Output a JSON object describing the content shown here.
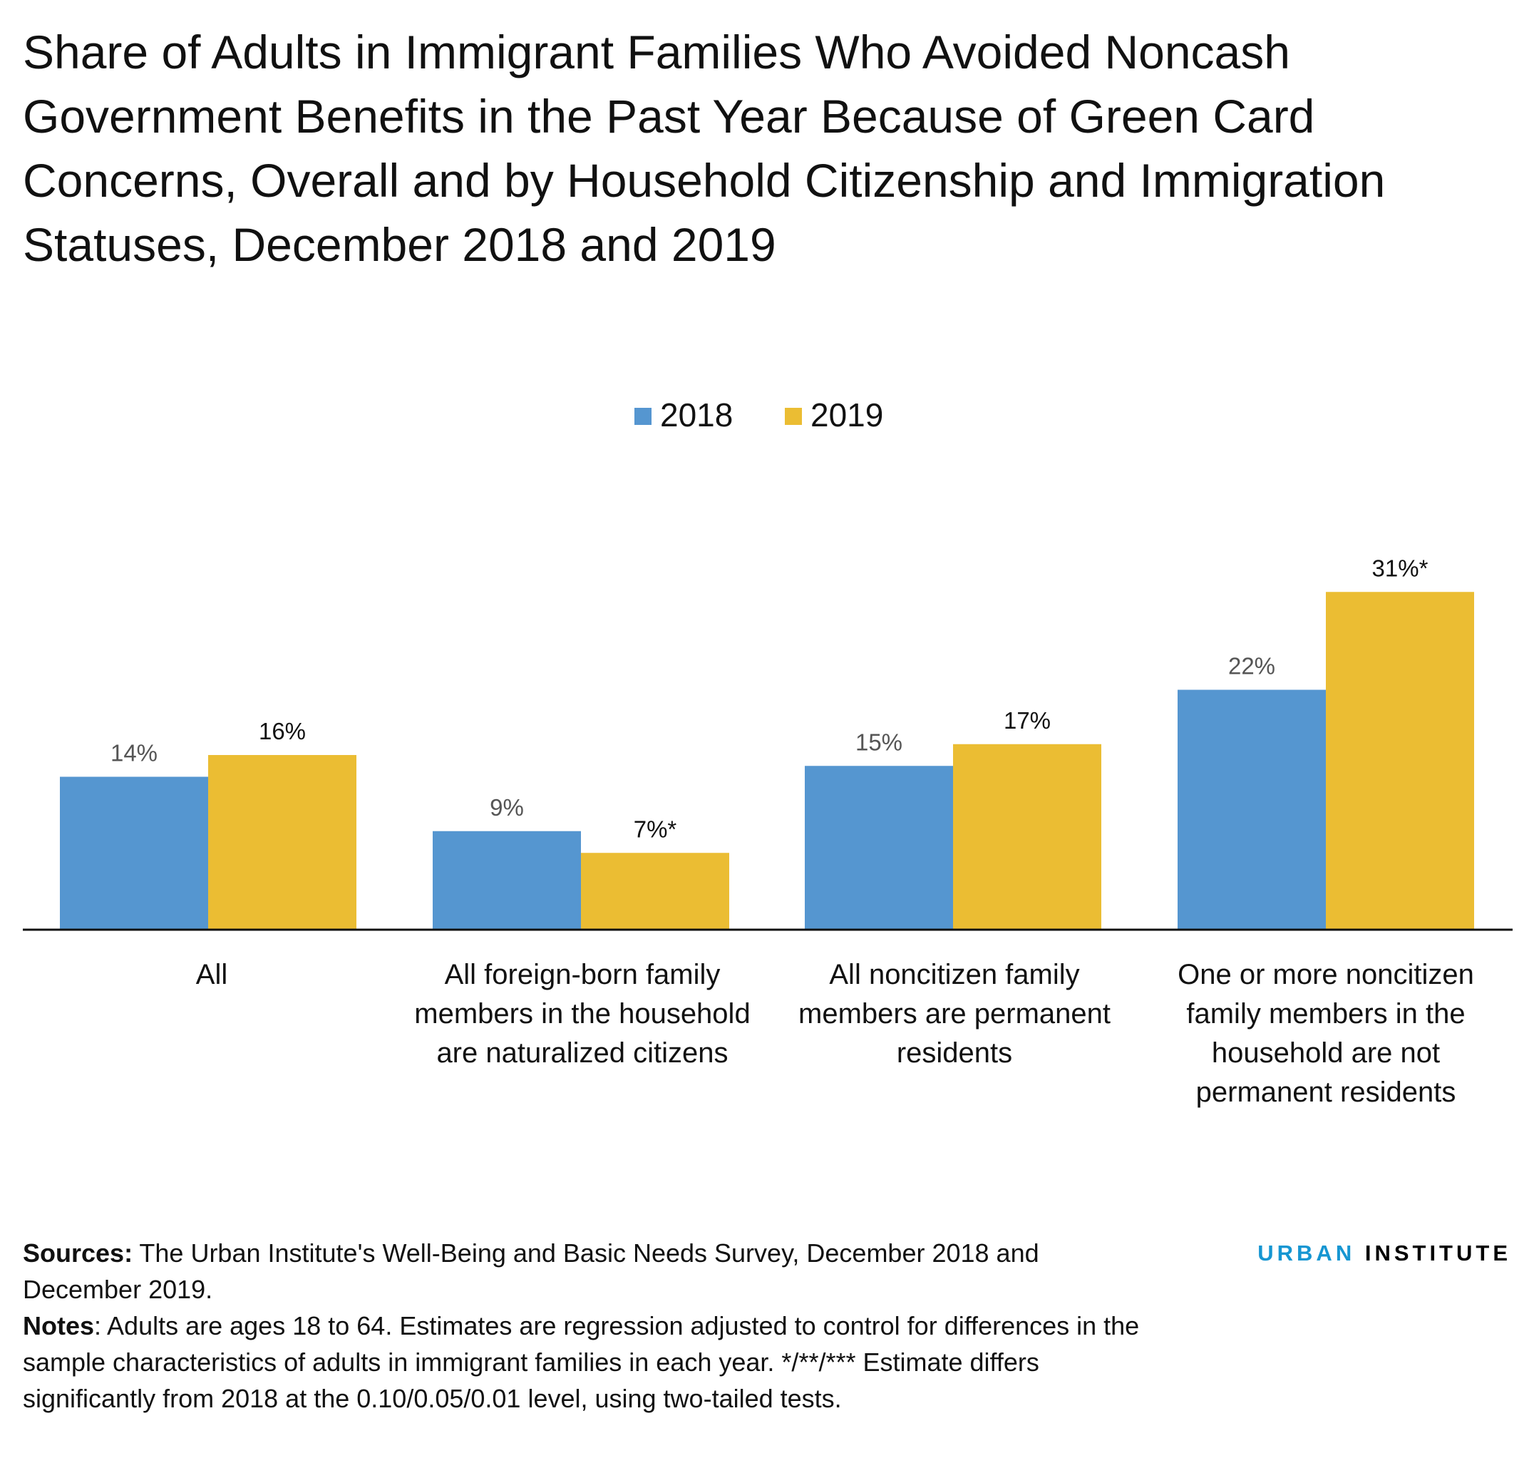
{
  "title": "Share of Adults in Immigrant Families Who Avoided Noncash Government Benefits in the Past Year Because of Green Card Concerns, Overall and by Household Citizenship and Immigration Statuses, December 2018 and 2019",
  "chart_data": {
    "type": "bar",
    "categories": [
      "All",
      "All foreign-born family members in the household are naturalized citizens",
      "All noncitizen family members are permanent residents",
      "One or more noncitizen family members in the household are not permanent residents"
    ],
    "series": [
      {
        "name": "2018",
        "color": "#5596d0",
        "values": [
          14,
          9,
          15,
          22
        ],
        "labels": [
          "14%",
          "9%",
          "15%",
          "22%"
        ]
      },
      {
        "name": "2019",
        "color": "#ebbd33",
        "values": [
          16,
          7,
          17,
          31
        ],
        "labels": [
          "16%",
          "7%*",
          "17%",
          "31%*"
        ]
      }
    ],
    "xlabel": "",
    "ylabel": "",
    "ylim": [
      0,
      31
    ],
    "grid": false,
    "legend": "top-center"
  },
  "footer": {
    "sources_label": "Sources:",
    "sources_text": " The Urban Institute's Well-Being and Basic Needs Survey, December 2018 and December 2019.",
    "notes_label": "Notes",
    "notes_text": ": Adults are ages 18 to 64. Estimates are regression adjusted to control for differences in the sample characteristics of adults in immigrant families in each year. */**/*** Estimate differs significantly from 2018 at the 0.10/0.05/0.01 level, using two-tailed tests."
  },
  "logo": {
    "word1": "URBAN",
    "word2": "INSTITUTE"
  }
}
